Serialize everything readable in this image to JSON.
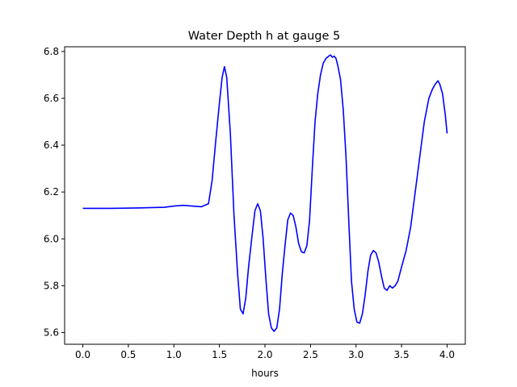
{
  "chart_data": {
    "type": "line",
    "title": "Water Depth h at gauge 5",
    "xlabel": "hours",
    "ylabel": "",
    "xlim": [
      -0.2,
      4.2
    ],
    "ylim": [
      5.55,
      6.82
    ],
    "xticks": [
      0.0,
      0.5,
      1.0,
      1.5,
      2.0,
      2.5,
      3.0,
      3.5,
      4.0
    ],
    "xtick_labels": [
      "0.0",
      "0.5",
      "1.0",
      "1.5",
      "2.0",
      "2.5",
      "3.0",
      "3.5",
      "4.0"
    ],
    "yticks": [
      5.6,
      5.8,
      6.0,
      6.2,
      6.4,
      6.6,
      6.8
    ],
    "ytick_labels": [
      "5.6",
      "5.8",
      "6.0",
      "6.2",
      "6.4",
      "6.6",
      "6.8"
    ],
    "grid": false,
    "series": [
      {
        "color": "#0000ff",
        "x": [
          0.0,
          0.3,
          0.6,
          0.9,
          1.0,
          1.1,
          1.2,
          1.3,
          1.38,
          1.42,
          1.46,
          1.5,
          1.53,
          1.555,
          1.58,
          1.62,
          1.66,
          1.7,
          1.73,
          1.76,
          1.79,
          1.82,
          1.86,
          1.89,
          1.92,
          1.95,
          1.98,
          2.01,
          2.04,
          2.07,
          2.1,
          2.13,
          2.16,
          2.19,
          2.22,
          2.25,
          2.28,
          2.31,
          2.34,
          2.37,
          2.4,
          2.43,
          2.46,
          2.49,
          2.52,
          2.55,
          2.58,
          2.61,
          2.64,
          2.67,
          2.7,
          2.72,
          2.74,
          2.76,
          2.78,
          2.8,
          2.83,
          2.86,
          2.89,
          2.92,
          2.95,
          2.98,
          3.01,
          3.04,
          3.07,
          3.1,
          3.13,
          3.16,
          3.19,
          3.22,
          3.25,
          3.28,
          3.31,
          3.34,
          3.37,
          3.4,
          3.43,
          3.46,
          3.5,
          3.55,
          3.6,
          3.65,
          3.7,
          3.75,
          3.8,
          3.84,
          3.87,
          3.9,
          3.92,
          3.95,
          3.98,
          4.0
        ],
        "y": [
          6.13,
          6.13,
          6.132,
          6.135,
          6.14,
          6.143,
          6.14,
          6.137,
          6.15,
          6.25,
          6.42,
          6.58,
          6.69,
          6.735,
          6.69,
          6.45,
          6.1,
          5.85,
          5.7,
          5.68,
          5.75,
          5.88,
          6.02,
          6.12,
          6.15,
          6.12,
          6.0,
          5.83,
          5.68,
          5.62,
          5.605,
          5.62,
          5.7,
          5.85,
          5.97,
          6.08,
          6.11,
          6.1,
          6.05,
          5.98,
          5.945,
          5.94,
          5.97,
          6.08,
          6.3,
          6.5,
          6.62,
          6.7,
          6.75,
          6.77,
          6.78,
          6.785,
          6.775,
          6.78,
          6.77,
          6.74,
          6.68,
          6.55,
          6.35,
          6.08,
          5.82,
          5.7,
          5.645,
          5.64,
          5.68,
          5.76,
          5.86,
          5.93,
          5.95,
          5.94,
          5.9,
          5.84,
          5.79,
          5.78,
          5.8,
          5.79,
          5.8,
          5.82,
          5.88,
          5.95,
          6.05,
          6.2,
          6.35,
          6.5,
          6.6,
          6.64,
          6.66,
          6.675,
          6.66,
          6.62,
          6.53,
          6.45
        ]
      }
    ]
  }
}
